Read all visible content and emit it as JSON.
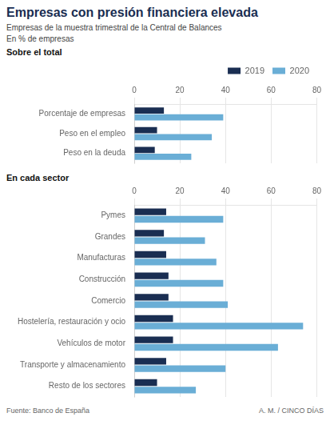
{
  "chart_data": [
    {
      "type": "bar",
      "title": "Empresas con presión financiera elevada",
      "subtitle": "Empresas de la muestra trimestral de la Central de Balances",
      "annotations": [
        "En % de empresas",
        "Sobre el total"
      ],
      "orientation": "horizontal",
      "categories": [
        "Porcentaje de empresas",
        "Peso en el empleo",
        "Peso en la deuda"
      ],
      "series": [
        {
          "name": "2019",
          "color": "#1a2e52",
          "values": [
            13,
            10,
            9
          ]
        },
        {
          "name": "2020",
          "color": "#6aaed6",
          "values": [
            39,
            34,
            25
          ]
        }
      ],
      "xlim": [
        0,
        80
      ],
      "xticks": [
        0,
        20,
        40,
        60,
        80
      ],
      "grid": true,
      "legend": "top right"
    },
    {
      "type": "bar",
      "title": "En cada sector",
      "annotations": [
        "Fuente: Banco de España",
        "A. M. / CINCO DÍAS"
      ],
      "orientation": "horizontal",
      "categories": [
        "Pymes",
        "Grandes",
        "Manufacturas",
        "Construcción",
        "Comercio",
        "Hostelería, restauración y ocio",
        "Vehículos de motor",
        "Transporte y almacenamiento",
        "Resto de los sectores"
      ],
      "series": [
        {
          "name": "2019",
          "color": "#1a2e52",
          "values": [
            14,
            13,
            14,
            15,
            15,
            17,
            17,
            14,
            10
          ]
        },
        {
          "name": "2020",
          "color": "#6aaed6",
          "values": [
            39,
            31,
            36,
            39,
            41,
            74,
            63,
            40,
            27
          ]
        }
      ],
      "xlim": [
        0,
        80
      ],
      "xticks": [
        0,
        20,
        40,
        60,
        80
      ],
      "grid": true
    }
  ]
}
